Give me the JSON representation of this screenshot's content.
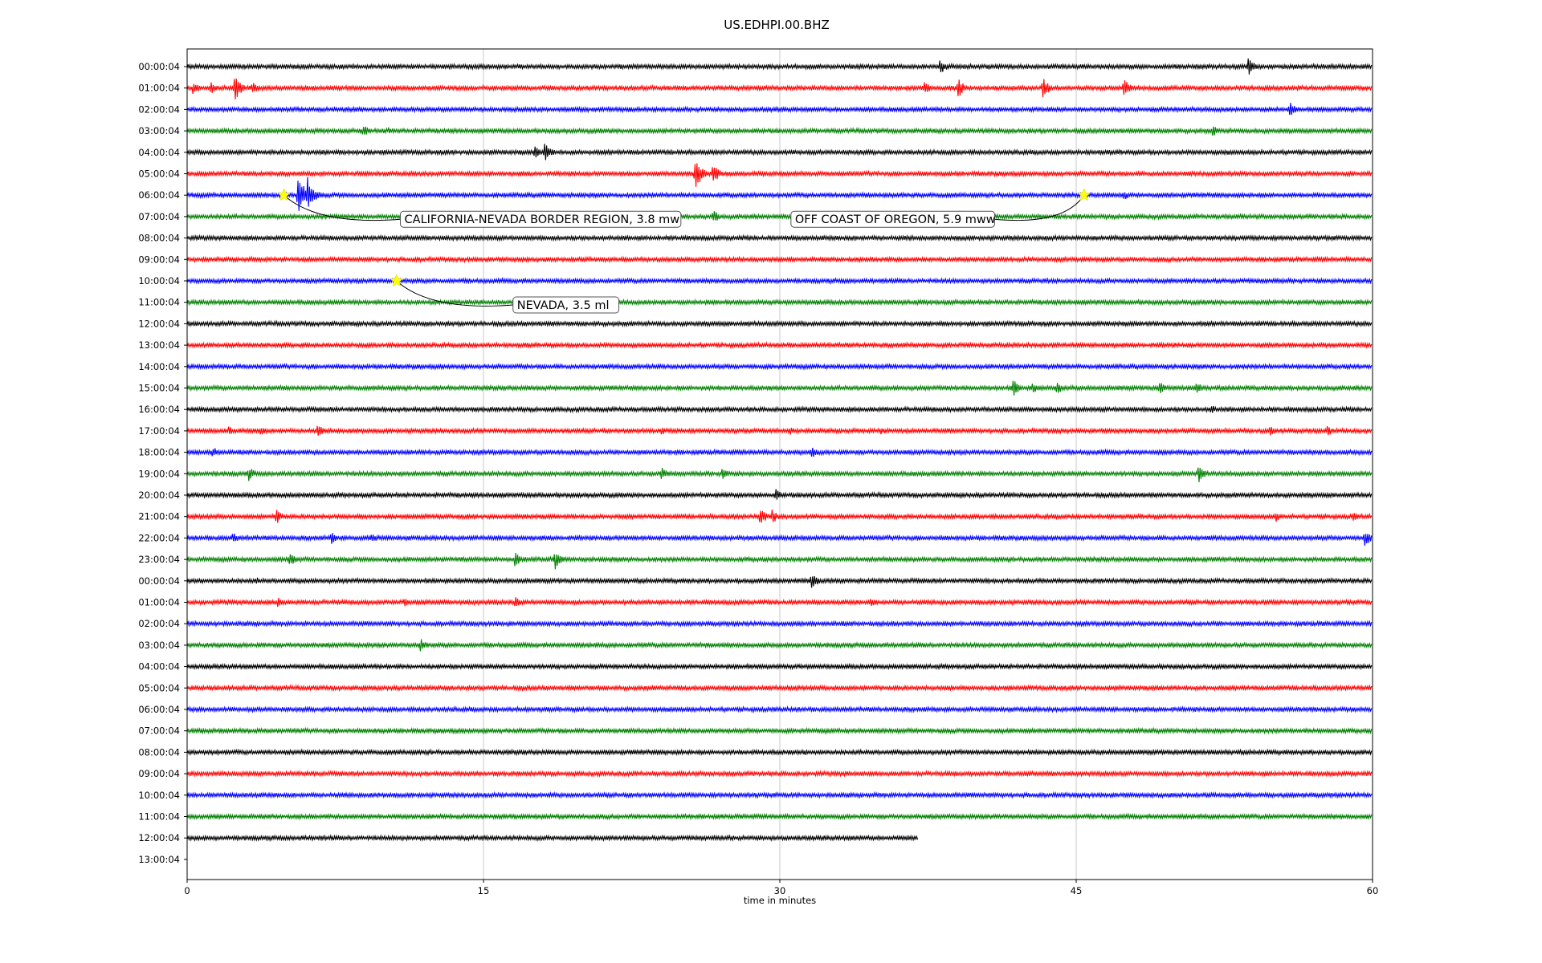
{
  "chart_data": {
    "type": "line",
    "title": "US.EDHPI.00.BHZ",
    "xlabel": "time in minutes",
    "ylabel": "",
    "xlim": [
      0,
      60
    ],
    "x_ticks": [
      0,
      15,
      30,
      45,
      60
    ],
    "grid": "vertical lines at x ticks",
    "colors": [
      "#000000",
      "#ff0000",
      "#0000ff",
      "#008000"
    ],
    "rows": [
      "00:00:04",
      "01:00:04",
      "02:00:04",
      "03:00:04",
      "04:00:04",
      "05:00:04",
      "06:00:04",
      "07:00:04",
      "08:00:04",
      "09:00:04",
      "10:00:04",
      "11:00:04",
      "12:00:04",
      "13:00:04",
      "14:00:04",
      "15:00:04",
      "16:00:04",
      "17:00:04",
      "18:00:04",
      "19:00:04",
      "20:00:04",
      "21:00:04",
      "22:00:04",
      "23:00:04",
      "00:00:04",
      "01:00:04",
      "02:00:04",
      "03:00:04",
      "04:00:04",
      "05:00:04",
      "06:00:04",
      "07:00:04",
      "08:00:04",
      "09:00:04",
      "10:00:04",
      "11:00:04",
      "12:00:04",
      "13:00:04"
    ],
    "last_trace_end_minute": 37,
    "events": [
      {
        "label": "CALIFORNIA-NEVADA BORDER REGION, 3.8 mw",
        "row": 6,
        "minute": 4.9,
        "marker": "yellow-star"
      },
      {
        "label": "OFF COAST OF OREGON, 5.9 mww",
        "row": 6,
        "minute": 45.4,
        "marker": "yellow-star"
      },
      {
        "label": "NEVADA, 3.5 ml",
        "row": 10,
        "minute": 10.6,
        "marker": "yellow-star"
      }
    ],
    "bursts": [
      {
        "row": 0,
        "minute": 38.1,
        "amp": 11
      },
      {
        "row": 0,
        "minute": 40.5,
        "amp": 5
      },
      {
        "row": 0,
        "minute": 53.7,
        "amp": 12
      },
      {
        "row": 1,
        "minute": 0.3,
        "amp": 10
      },
      {
        "row": 1,
        "minute": 1.2,
        "amp": 8
      },
      {
        "row": 1,
        "minute": 2.4,
        "amp": 18
      },
      {
        "row": 1,
        "minute": 3.3,
        "amp": 9
      },
      {
        "row": 1,
        "minute": 37.3,
        "amp": 9
      },
      {
        "row": 1,
        "minute": 39.0,
        "amp": 14
      },
      {
        "row": 1,
        "minute": 43.3,
        "amp": 14
      },
      {
        "row": 1,
        "minute": 47.4,
        "amp": 13
      },
      {
        "row": 2,
        "minute": 55.8,
        "amp": 10
      },
      {
        "row": 3,
        "minute": 8.9,
        "amp": 9
      },
      {
        "row": 3,
        "minute": 10.2,
        "amp": 6
      },
      {
        "row": 3,
        "minute": 51.9,
        "amp": 8
      },
      {
        "row": 4,
        "minute": 17.6,
        "amp": 9
      },
      {
        "row": 4,
        "minute": 18.1,
        "amp": 13
      },
      {
        "row": 5,
        "minute": 25.7,
        "amp": 24
      },
      {
        "row": 5,
        "minute": 26.6,
        "amp": 15
      },
      {
        "row": 6,
        "minute": 5.6,
        "amp": 30
      },
      {
        "row": 6,
        "minute": 6.1,
        "amp": 24
      },
      {
        "row": 6,
        "minute": 47.4,
        "amp": 7
      },
      {
        "row": 7,
        "minute": 26.6,
        "amp": 10
      },
      {
        "row": 15,
        "minute": 41.8,
        "amp": 12
      },
      {
        "row": 15,
        "minute": 42.8,
        "amp": 8
      },
      {
        "row": 15,
        "minute": 44.0,
        "amp": 9
      },
      {
        "row": 15,
        "minute": 49.2,
        "amp": 10
      },
      {
        "row": 15,
        "minute": 51.1,
        "amp": 8
      },
      {
        "row": 16,
        "minute": 51.8,
        "amp": 7
      },
      {
        "row": 17,
        "minute": 2.1,
        "amp": 7
      },
      {
        "row": 17,
        "minute": 3.7,
        "amp": 7
      },
      {
        "row": 17,
        "minute": 6.6,
        "amp": 9
      },
      {
        "row": 17,
        "minute": 24.0,
        "amp": 6
      },
      {
        "row": 17,
        "minute": 30.5,
        "amp": 6
      },
      {
        "row": 17,
        "minute": 35.1,
        "amp": 6
      },
      {
        "row": 17,
        "minute": 54.8,
        "amp": 7
      },
      {
        "row": 17,
        "minute": 57.7,
        "amp": 8
      },
      {
        "row": 18,
        "minute": 1.3,
        "amp": 8
      },
      {
        "row": 18,
        "minute": 31.6,
        "amp": 8
      },
      {
        "row": 19,
        "minute": 3.1,
        "amp": 10
      },
      {
        "row": 19,
        "minute": 24.0,
        "amp": 9
      },
      {
        "row": 19,
        "minute": 27.1,
        "amp": 9
      },
      {
        "row": 19,
        "minute": 51.2,
        "amp": 13
      },
      {
        "row": 20,
        "minute": 29.8,
        "amp": 8
      },
      {
        "row": 21,
        "minute": 4.5,
        "amp": 11
      },
      {
        "row": 21,
        "minute": 29.0,
        "amp": 12
      },
      {
        "row": 21,
        "minute": 29.6,
        "amp": 10
      },
      {
        "row": 21,
        "minute": 55.1,
        "amp": 8
      },
      {
        "row": 21,
        "minute": 59.0,
        "amp": 7
      },
      {
        "row": 22,
        "minute": 2.3,
        "amp": 8
      },
      {
        "row": 22,
        "minute": 7.3,
        "amp": 8
      },
      {
        "row": 22,
        "minute": 9.3,
        "amp": 8
      },
      {
        "row": 22,
        "minute": 59.6,
        "amp": 12
      },
      {
        "row": 23,
        "minute": 5.2,
        "amp": 10
      },
      {
        "row": 23,
        "minute": 16.6,
        "amp": 11
      },
      {
        "row": 23,
        "minute": 18.6,
        "amp": 14
      },
      {
        "row": 24,
        "minute": 3.5,
        "amp": 5
      },
      {
        "row": 24,
        "minute": 31.6,
        "amp": 12
      },
      {
        "row": 25,
        "minute": 4.6,
        "amp": 8
      },
      {
        "row": 25,
        "minute": 11.0,
        "amp": 6
      },
      {
        "row": 25,
        "minute": 16.6,
        "amp": 8
      },
      {
        "row": 25,
        "minute": 34.6,
        "amp": 7
      },
      {
        "row": 27,
        "minute": 11.8,
        "amp": 10
      },
      {
        "row": 32,
        "minute": 31.3,
        "amp": 4
      }
    ]
  }
}
